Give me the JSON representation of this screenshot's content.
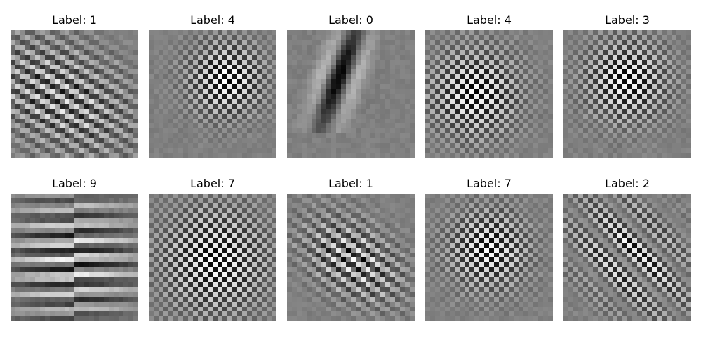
{
  "figure": {
    "panels": [
      {
        "label": "Label: 1",
        "pattern": "diagonal-stripes"
      },
      {
        "label": "Label: 4",
        "pattern": "checkerboard"
      },
      {
        "label": "Label: 0",
        "pattern": "elongated-blob"
      },
      {
        "label": "Label: 4",
        "pattern": "checkerboard"
      },
      {
        "label": "Label: 3",
        "pattern": "checkerboard"
      },
      {
        "label": "Label: 9",
        "pattern": "horizontal-bands"
      },
      {
        "label": "Label: 7",
        "pattern": "checkerboard"
      },
      {
        "label": "Label: 1",
        "pattern": "diagonal-stripes"
      },
      {
        "label": "Label: 7",
        "pattern": "checkerboard"
      },
      {
        "label": "Label: 2",
        "pattern": "diagonal-stripes"
      }
    ]
  }
}
